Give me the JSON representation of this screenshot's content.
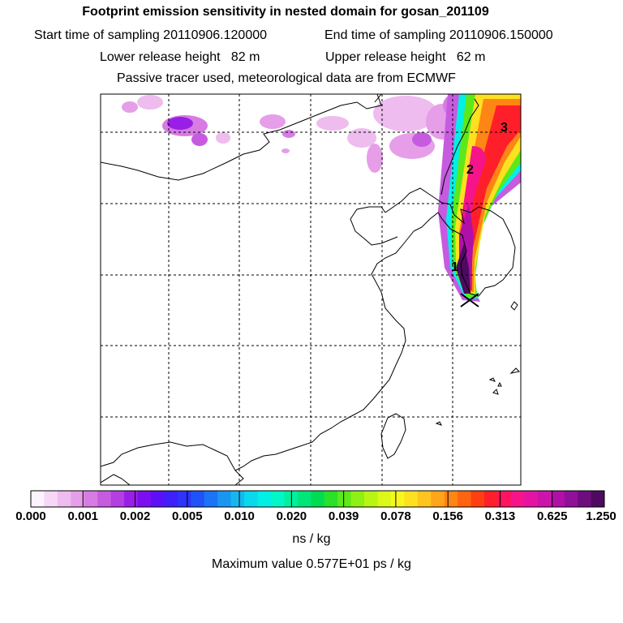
{
  "header": {
    "title": "Footprint emission sensitivity in nested domain for gosan_201109",
    "start_label": "Start time of sampling 20110906.120000",
    "end_label": "End time of sampling 20110906.150000",
    "lower_label": "Lower release height   82 m",
    "upper_label": "Upper release height   62 m",
    "note": "Passive tracer used, meteorological data are from ECMWF"
  },
  "map": {
    "labels": [
      "1",
      "2",
      "3"
    ],
    "receptor_marker": "x-marker-icon"
  },
  "colorbar": {
    "ticks": [
      "0.000",
      "0.001",
      "0.002",
      "0.005",
      "0.010",
      "0.020",
      "0.039",
      "0.078",
      "0.156",
      "0.313",
      "0.625",
      "1.250"
    ],
    "colors": [
      "#fdf3fd",
      "#f6d8f6",
      "#eebcee",
      "#e69ee9",
      "#d77ce3",
      "#c65be0",
      "#b43ee0",
      "#9a1fe6",
      "#7c0ef0",
      "#5d10f6",
      "#3f1ffa",
      "#2c33fa",
      "#1f52f8",
      "#1a74f6",
      "#1a96f2",
      "#15b8ee",
      "#0ad8ec",
      "#00f0e6",
      "#00f7c8",
      "#00f0a0",
      "#00e67a",
      "#00dc52",
      "#29e02a",
      "#5ee81a",
      "#8ff015",
      "#b8f515",
      "#dcf818",
      "#f6f81d",
      "#fde020",
      "#ffc41f",
      "#ffa51a",
      "#ff8514",
      "#ff6410",
      "#ff3f10",
      "#ff1f2b",
      "#ff1460",
      "#f6148a",
      "#e414a2",
      "#cc14ab",
      "#b010a8",
      "#90109a",
      "#6e0e7e",
      "#4e0a60"
    ],
    "unit": "ns / kg"
  },
  "footer": {
    "max_value": "Maximum value  0.577E+01 ps / kg"
  }
}
